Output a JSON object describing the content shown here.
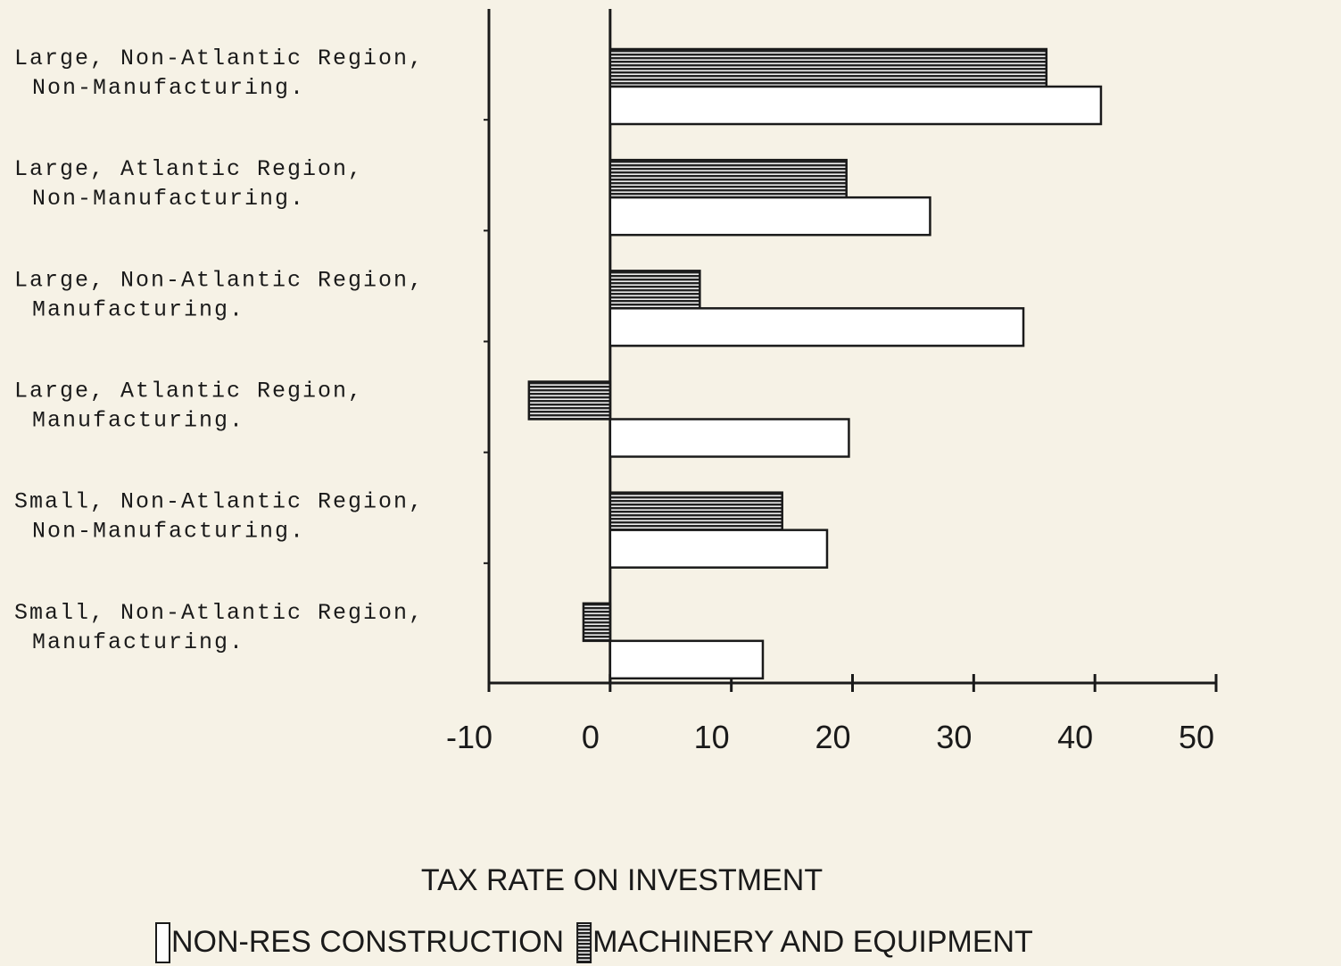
{
  "chart_data": {
    "type": "bar",
    "orientation": "horizontal",
    "xlabel": "TAX RATE ON INVESTMENT",
    "categories": [
      "Large, Non-Atlantic Region, Non-Manufacturing.",
      "Large, Atlantic Region, Non-Manufacturing.",
      "Large, Non-Atlantic Region, Manufacturing.",
      "Large, Atlantic Region, Manufacturing.",
      "Small, Non-Atlantic Region, Non-Manufacturing.",
      "Small, Non-Atlantic Region, Manufacturing."
    ],
    "series": [
      {
        "name": "MACHINERY AND EQUIPMENT",
        "color": "#222222",
        "values": [
          36,
          19.5,
          7.4,
          -6.7,
          14.2,
          -2.2
        ]
      },
      {
        "name": "NON-RES CONSTRUCTION",
        "color": "#ffffff",
        "values": [
          40.5,
          26.4,
          34.1,
          19.7,
          17.9,
          12.6
        ]
      }
    ],
    "xlim": [
      -10,
      50
    ],
    "xticks": [
      -10,
      0,
      10,
      20,
      30,
      40,
      50
    ]
  }
}
